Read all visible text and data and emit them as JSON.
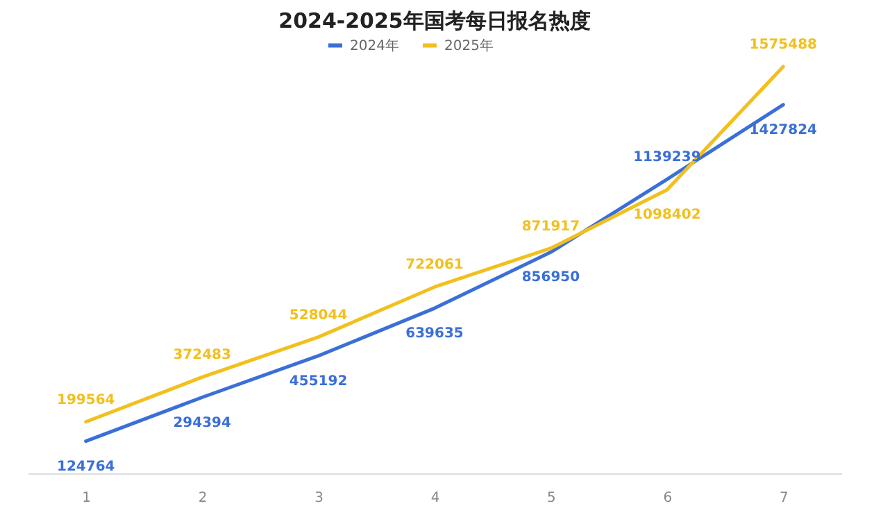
{
  "chart_data": {
    "type": "line",
    "title": "2024-2025年国考每日报名热度",
    "categories": [
      "1",
      "2",
      "3",
      "4",
      "5",
      "6",
      "7"
    ],
    "series": [
      {
        "name": "2024年",
        "color": "#3b6fd8",
        "values": [
          124764,
          294394,
          455192,
          639635,
          856950,
          1139239,
          1427824
        ]
      },
      {
        "name": "2025年",
        "color": "#f2c01e",
        "values": [
          199564,
          372483,
          528044,
          722061,
          871917,
          1098402,
          1575488
        ]
      }
    ],
    "data_labels": true,
    "legend": "top",
    "grid": false,
    "marker": "none",
    "line_style": "solid"
  }
}
